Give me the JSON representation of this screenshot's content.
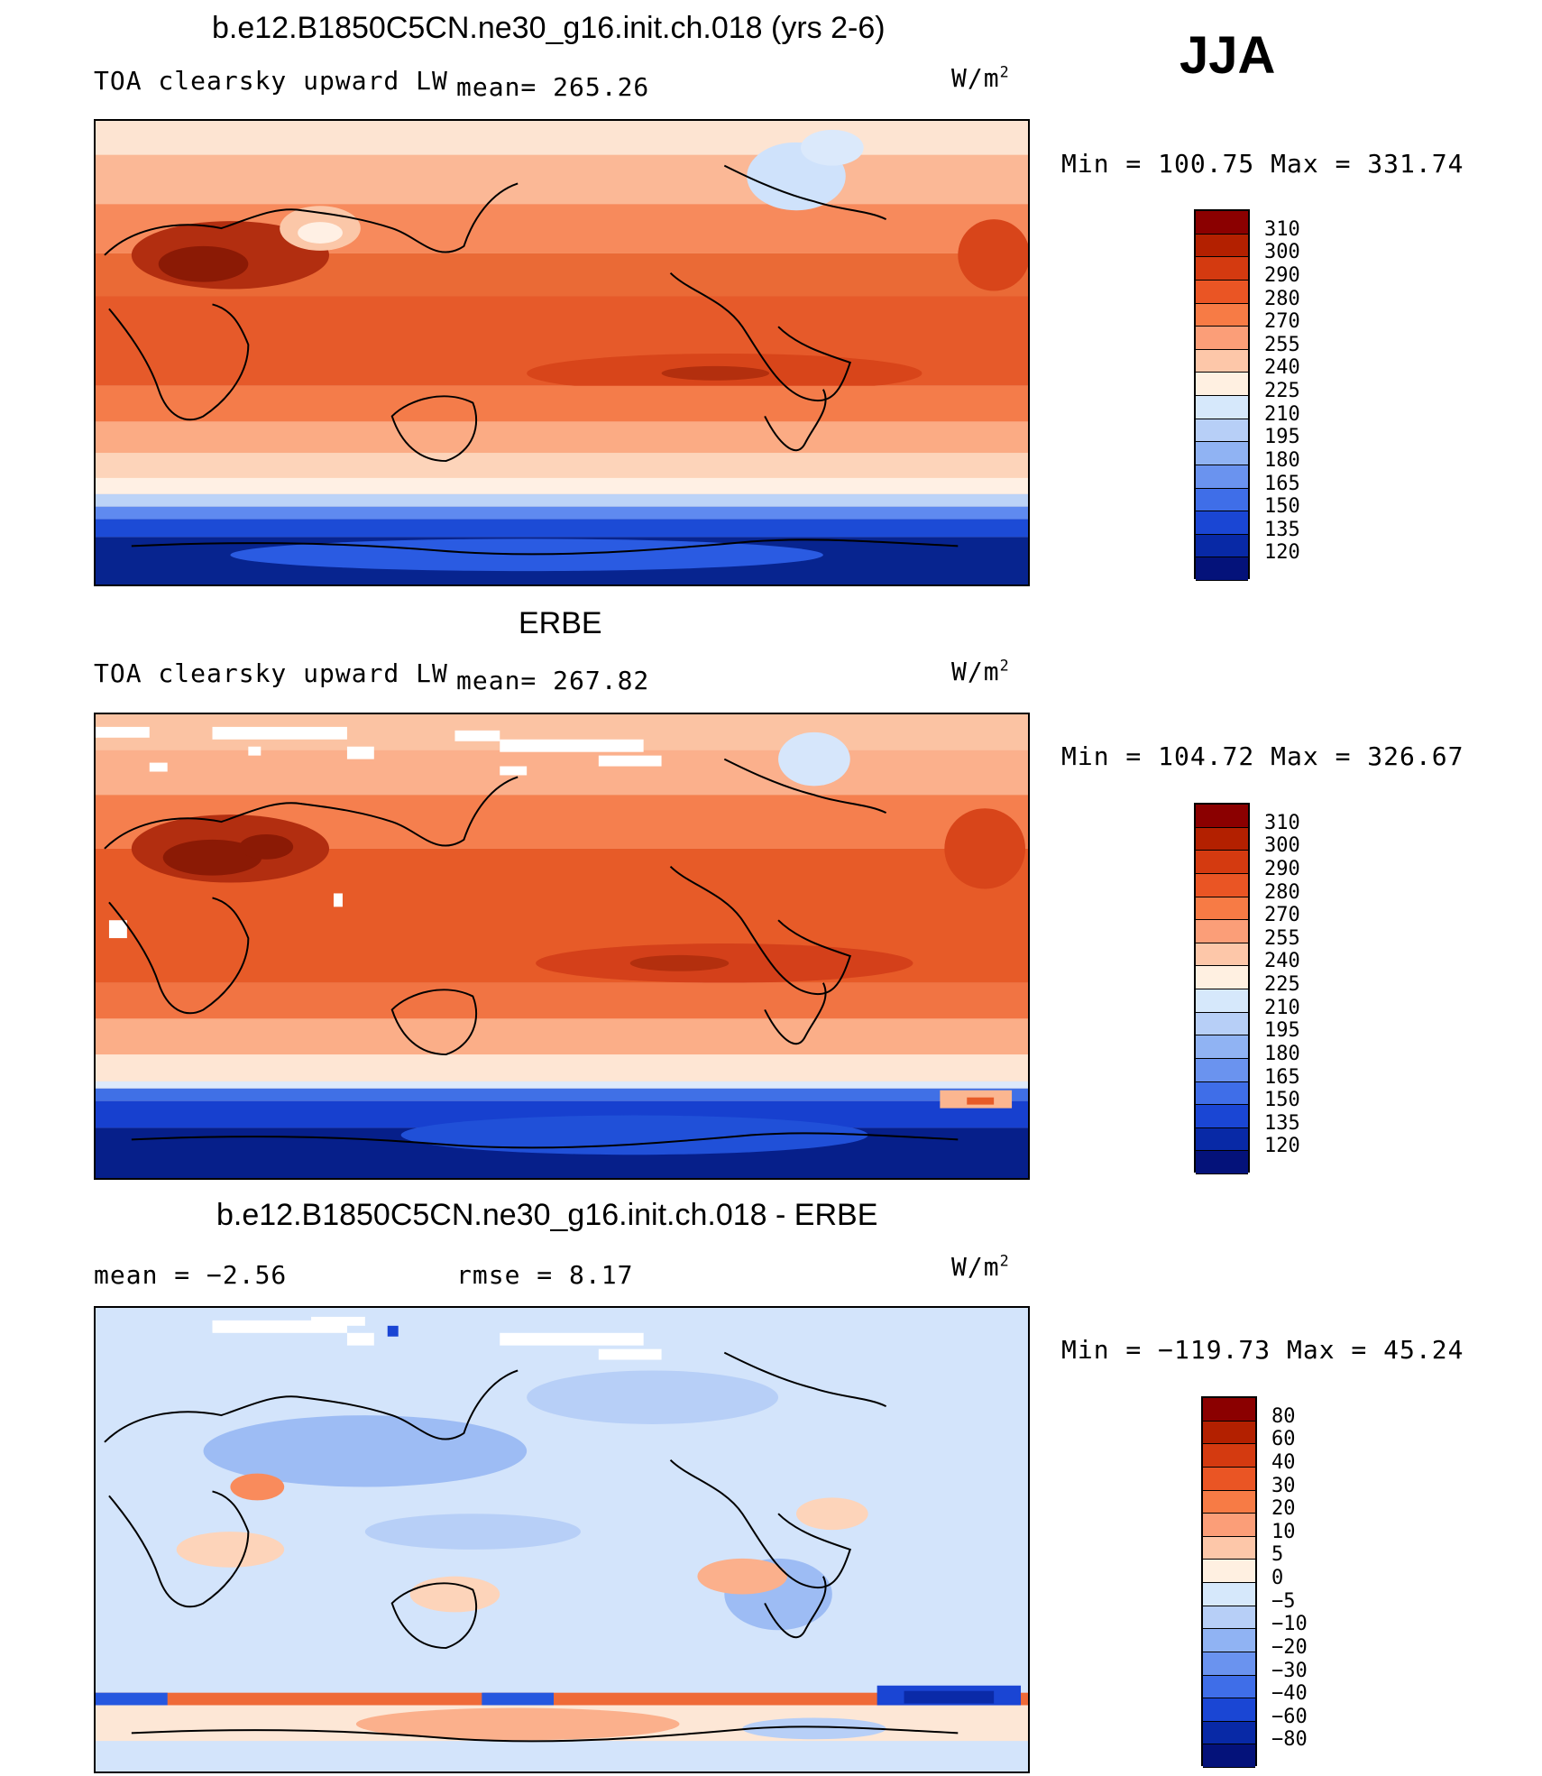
{
  "season": "JJA",
  "panels": [
    {
      "title": "b.e12.B1850C5CN.ne30_g16.init.ch.018 (yrs 2-6)",
      "left_label": "TOA clearsky upward LW",
      "stat_label": "mean= 265.26",
      "units": "W/m",
      "units_sup": "2",
      "minmax": "Min = 100.75 Max = 331.74",
      "colorbar": {
        "labels": [
          "310",
          "300",
          "290",
          "280",
          "270",
          "255",
          "240",
          "225",
          "210",
          "195",
          "180",
          "165",
          "150",
          "135",
          "120"
        ],
        "colors": [
          "#8b0000",
          "#b32000",
          "#d43a10",
          "#ea5524",
          "#f77b45",
          "#fb9e78",
          "#fdc7a9",
          "#fff0e1",
          "#d6e8fb",
          "#b7cff7",
          "#90b3f3",
          "#6a93ef",
          "#3f6ee8",
          "#1a46d4",
          "#0829a6",
          "#04127a"
        ]
      },
      "chart_data": {
        "type": "heatmap",
        "variable": "TOA clearsky upward LW",
        "units": "W/m2",
        "mean": 265.26,
        "min": 100.75,
        "max": 331.74,
        "contour_levels": [
          120,
          135,
          150,
          165,
          180,
          195,
          210,
          225,
          240,
          255,
          270,
          280,
          290,
          300,
          310
        ]
      }
    },
    {
      "title": "ERBE",
      "left_label": "TOA clearsky upward LW",
      "stat_label": "mean= 267.82",
      "units": "W/m",
      "units_sup": "2",
      "minmax": "Min = 104.72 Max = 326.67",
      "colorbar": {
        "labels": [
          "310",
          "300",
          "290",
          "280",
          "270",
          "255",
          "240",
          "225",
          "210",
          "195",
          "180",
          "165",
          "150",
          "135",
          "120"
        ],
        "colors": [
          "#8b0000",
          "#b32000",
          "#d43a10",
          "#ea5524",
          "#f77b45",
          "#fb9e78",
          "#fdc7a9",
          "#fff0e1",
          "#d6e8fb",
          "#b7cff7",
          "#90b3f3",
          "#6a93ef",
          "#3f6ee8",
          "#1a46d4",
          "#0829a6",
          "#04127a"
        ]
      },
      "chart_data": {
        "type": "heatmap",
        "variable": "TOA clearsky upward LW",
        "units": "W/m2",
        "mean": 267.82,
        "min": 104.72,
        "max": 326.67,
        "contour_levels": [
          120,
          135,
          150,
          165,
          180,
          195,
          210,
          225,
          240,
          255,
          270,
          280,
          290,
          300,
          310
        ]
      }
    },
    {
      "title": "b.e12.B1850C5CN.ne30_g16.init.ch.018 - ERBE",
      "left_label": "mean =   −2.56",
      "stat_label": "rmse =    8.17",
      "units": "W/m",
      "units_sup": "2",
      "minmax": "Min = −119.73 Max =  45.24",
      "colorbar": {
        "labels": [
          "80",
          "60",
          "40",
          "30",
          "20",
          "10",
          "5",
          "0",
          "−5",
          "−10",
          "−20",
          "−30",
          "−40",
          "−60",
          "−80"
        ],
        "colors": [
          "#8b0000",
          "#b32000",
          "#d43a10",
          "#ea5524",
          "#f77b45",
          "#fb9e78",
          "#fdc7a9",
          "#fff0e1",
          "#d6e8fb",
          "#b7cff7",
          "#90b3f3",
          "#6a93ef",
          "#3f6ee8",
          "#1a46d4",
          "#0829a6",
          "#04127a"
        ]
      },
      "chart_data": {
        "type": "heatmap",
        "variable": "difference",
        "units": "W/m2",
        "mean": -2.56,
        "rmse": 8.17,
        "min": -119.73,
        "max": 45.24,
        "contour_levels": [
          -80,
          -60,
          -40,
          -30,
          -20,
          -10,
          -5,
          0,
          5,
          10,
          20,
          30,
          40,
          60,
          80
        ]
      }
    }
  ]
}
